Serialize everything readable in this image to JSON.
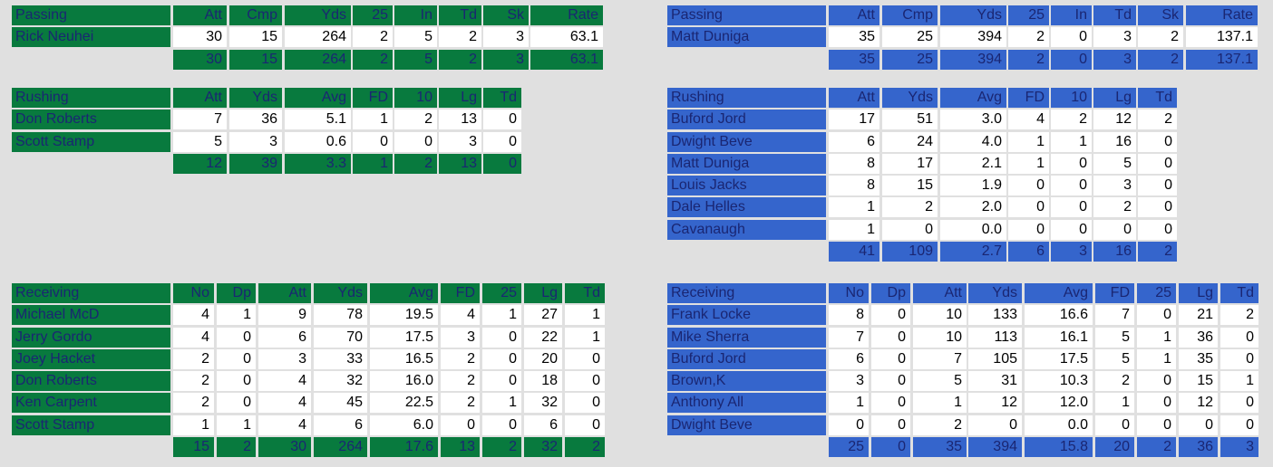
{
  "theme": {
    "home": "#087a3e",
    "away": "#3565cc",
    "text": "#1a2672"
  },
  "home": {
    "passing": {
      "title": "Passing",
      "columns": [
        "Att",
        "Cmp",
        "Yds",
        "25",
        "In",
        "Td",
        "Sk",
        "Rate"
      ],
      "rows": [
        {
          "name": "Rick Neuhei",
          "values": [
            "30",
            "15",
            "264",
            "2",
            "5",
            "2",
            "3",
            "63.1"
          ]
        }
      ],
      "totals": [
        "30",
        "15",
        "264",
        "2",
        "5",
        "2",
        "3",
        "63.1"
      ]
    },
    "rushing": {
      "title": "Rushing",
      "columns": [
        "Att",
        "Yds",
        "Avg",
        "FD",
        "10",
        "Lg",
        "Td"
      ],
      "rows": [
        {
          "name": "Don Roberts",
          "values": [
            "7",
            "36",
            "5.1",
            "1",
            "2",
            "13",
            "0"
          ]
        },
        {
          "name": "Scott Stamp",
          "values": [
            "5",
            "3",
            "0.6",
            "0",
            "0",
            "3",
            "0"
          ]
        }
      ],
      "totals": [
        "12",
        "39",
        "3.3",
        "1",
        "2",
        "13",
        "0"
      ]
    },
    "receiving": {
      "title": "Receiving",
      "columns": [
        "No",
        "Dp",
        "Att",
        "Yds",
        "Avg",
        "FD",
        "25",
        "Lg",
        "Td"
      ],
      "rows": [
        {
          "name": "Michael McD",
          "values": [
            "4",
            "1",
            "9",
            "78",
            "19.5",
            "4",
            "1",
            "27",
            "1"
          ]
        },
        {
          "name": "Jerry Gordo",
          "values": [
            "4",
            "0",
            "6",
            "70",
            "17.5",
            "3",
            "0",
            "22",
            "1"
          ]
        },
        {
          "name": "Joey Hacket",
          "values": [
            "2",
            "0",
            "3",
            "33",
            "16.5",
            "2",
            "0",
            "20",
            "0"
          ]
        },
        {
          "name": "Don Roberts",
          "values": [
            "2",
            "0",
            "4",
            "32",
            "16.0",
            "2",
            "0",
            "18",
            "0"
          ]
        },
        {
          "name": "Ken Carpent",
          "values": [
            "2",
            "0",
            "4",
            "45",
            "22.5",
            "2",
            "1",
            "32",
            "0"
          ]
        },
        {
          "name": "Scott Stamp",
          "values": [
            "1",
            "1",
            "4",
            "6",
            "6.0",
            "0",
            "0",
            "6",
            "0"
          ]
        }
      ],
      "totals": [
        "15",
        "2",
        "30",
        "264",
        "17.6",
        "13",
        "2",
        "32",
        "2"
      ]
    }
  },
  "away": {
    "passing": {
      "title": "Passing",
      "columns": [
        "Att",
        "Cmp",
        "Yds",
        "25",
        "In",
        "Td",
        "Sk",
        "Rate"
      ],
      "rows": [
        {
          "name": "Matt Duniga",
          "values": [
            "35",
            "25",
            "394",
            "2",
            "0",
            "3",
            "2",
            "137.1"
          ]
        }
      ],
      "totals": [
        "35",
        "25",
        "394",
        "2",
        "0",
        "3",
        "2",
        "137.1"
      ]
    },
    "rushing": {
      "title": "Rushing",
      "columns": [
        "Att",
        "Yds",
        "Avg",
        "FD",
        "10",
        "Lg",
        "Td"
      ],
      "rows": [
        {
          "name": "Buford Jord",
          "values": [
            "17",
            "51",
            "3.0",
            "4",
            "2",
            "12",
            "2"
          ]
        },
        {
          "name": "Dwight Beve",
          "values": [
            "6",
            "24",
            "4.0",
            "1",
            "1",
            "16",
            "0"
          ]
        },
        {
          "name": "Matt Duniga",
          "values": [
            "8",
            "17",
            "2.1",
            "1",
            "0",
            "5",
            "0"
          ]
        },
        {
          "name": "Louis Jacks",
          "values": [
            "8",
            "15",
            "1.9",
            "0",
            "0",
            "3",
            "0"
          ]
        },
        {
          "name": "Dale Helles",
          "values": [
            "1",
            "2",
            "2.0",
            "0",
            "0",
            "2",
            "0"
          ]
        },
        {
          "name": "Cavanaugh",
          "values": [
            "1",
            "0",
            "0.0",
            "0",
            "0",
            "0",
            "0"
          ]
        }
      ],
      "totals": [
        "41",
        "109",
        "2.7",
        "6",
        "3",
        "16",
        "2"
      ]
    },
    "receiving": {
      "title": "Receiving",
      "columns": [
        "No",
        "Dp",
        "Att",
        "Yds",
        "Avg",
        "FD",
        "25",
        "Lg",
        "Td"
      ],
      "rows": [
        {
          "name": "Frank Locke",
          "values": [
            "8",
            "0",
            "10",
            "133",
            "16.6",
            "7",
            "0",
            "21",
            "2"
          ]
        },
        {
          "name": "Mike Sherra",
          "values": [
            "7",
            "0",
            "10",
            "113",
            "16.1",
            "5",
            "1",
            "36",
            "0"
          ]
        },
        {
          "name": "Buford Jord",
          "values": [
            "6",
            "0",
            "7",
            "105",
            "17.5",
            "5",
            "1",
            "35",
            "0"
          ]
        },
        {
          "name": "Brown,K",
          "values": [
            "3",
            "0",
            "5",
            "31",
            "10.3",
            "2",
            "0",
            "15",
            "1"
          ]
        },
        {
          "name": "Anthony All",
          "values": [
            "1",
            "0",
            "1",
            "12",
            "12.0",
            "1",
            "0",
            "12",
            "0"
          ]
        },
        {
          "name": "Dwight Beve",
          "values": [
            "0",
            "0",
            "2",
            "0",
            "0.0",
            "0",
            "0",
            "0",
            "0"
          ]
        }
      ],
      "totals": [
        "25",
        "0",
        "35",
        "394",
        "15.8",
        "20",
        "2",
        "36",
        "3"
      ]
    }
  }
}
